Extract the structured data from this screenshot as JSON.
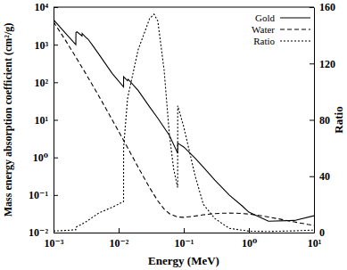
{
  "chart_data": {
    "type": "line",
    "x_label": "Energy (MeV)",
    "y_label": "Mass energy absorption coefficient (cm²/g)",
    "y2_label": "Ratio",
    "log": true,
    "legend": "upper right",
    "xlim": [
      0.001,
      10
    ],
    "xticks": [
      {
        "value": 0.001,
        "label": "10⁻³"
      },
      {
        "value": 0.01,
        "label": "10⁻²"
      },
      {
        "value": 0.1,
        "label": "10⁻¹"
      },
      {
        "value": 1,
        "label": "10⁰"
      },
      {
        "value": 10,
        "label": "10¹"
      }
    ],
    "ylim": [
      0.01,
      10000
    ],
    "yticks": [
      {
        "value": 0.01,
        "label": "10⁻²"
      },
      {
        "value": 0.1,
        "label": "10⁻¹"
      },
      {
        "value": 1,
        "label": "10⁰"
      },
      {
        "value": 10,
        "label": "10¹"
      },
      {
        "value": 100,
        "label": "10²"
      },
      {
        "value": 1000,
        "label": "10³"
      },
      {
        "value": 10000,
        "label": "10⁴"
      }
    ],
    "y2lim": [
      0,
      160
    ],
    "y2ticks": [
      0,
      40,
      80,
      120,
      160
    ],
    "series": [
      {
        "name": "Gold",
        "color": "#000000",
        "line_style": "solid",
        "x": [
          0.001,
          0.0015,
          0.0022,
          0.00221,
          0.0023,
          0.00274,
          0.00275,
          0.0031,
          0.0034,
          0.004,
          0.005,
          0.008,
          0.0119,
          0.01192,
          0.0137,
          0.014,
          0.02,
          0.03,
          0.04,
          0.05,
          0.06,
          0.0806,
          0.0808,
          0.1,
          0.15,
          0.2,
          0.3,
          0.5,
          0.8,
          1,
          2,
          5,
          10
        ],
        "values": [
          4600,
          2100,
          1000,
          2100,
          2200,
          1700,
          2000,
          1600,
          1400,
          950,
          550,
          170,
          75,
          140,
          110,
          120,
          60,
          22,
          11,
          6.2,
          3.9,
          1.3,
          2.4,
          1.9,
          0.95,
          0.55,
          0.25,
          0.1,
          0.05,
          0.035,
          0.02,
          0.021,
          0.028
        ]
      },
      {
        "name": "Water",
        "color": "#000000",
        "line_style": "dashed",
        "x": [
          0.001,
          0.0015,
          0.002,
          0.003,
          0.004,
          0.005,
          0.006,
          0.008,
          0.01,
          0.015,
          0.02,
          0.03,
          0.04,
          0.05,
          0.06,
          0.08,
          0.1,
          0.15,
          0.2,
          0.3,
          0.4,
          0.5,
          0.6,
          0.8,
          1,
          1.5,
          2,
          3,
          4,
          5,
          6,
          8,
          10
        ],
        "values": [
          4065,
          1372,
          615,
          192,
          82,
          42,
          24,
          9.9,
          4.94,
          1.37,
          0.544,
          0.155,
          0.0695,
          0.0422,
          0.0319,
          0.026,
          0.0255,
          0.0276,
          0.0297,
          0.0319,
          0.0328,
          0.033,
          0.0329,
          0.0321,
          0.0311,
          0.0283,
          0.026,
          0.0228,
          0.0206,
          0.0192,
          0.0181,
          0.0165,
          0.0155
        ]
      },
      {
        "name": "Ratio",
        "color": "#000000",
        "line_style": "dotted",
        "axis": "y2",
        "x": [
          0.001,
          0.0015,
          0.0022,
          0.00221,
          0.003,
          0.005,
          0.008,
          0.0119,
          0.01192,
          0.0137,
          0.0144,
          0.02,
          0.03,
          0.035,
          0.04,
          0.05,
          0.06,
          0.07,
          0.0806,
          0.0808,
          0.1,
          0.15,
          0.2,
          0.3,
          0.5,
          1,
          2,
          5,
          10
        ],
        "values": [
          1.1,
          1.5,
          2,
          3.8,
          7,
          14,
          18,
          22,
          60,
          95,
          100,
          130,
          152,
          155,
          150,
          115,
          70,
          45,
          32,
          90,
          75,
          40,
          20,
          10,
          3,
          1,
          0.8,
          1.2,
          1.8
        ]
      }
    ]
  }
}
